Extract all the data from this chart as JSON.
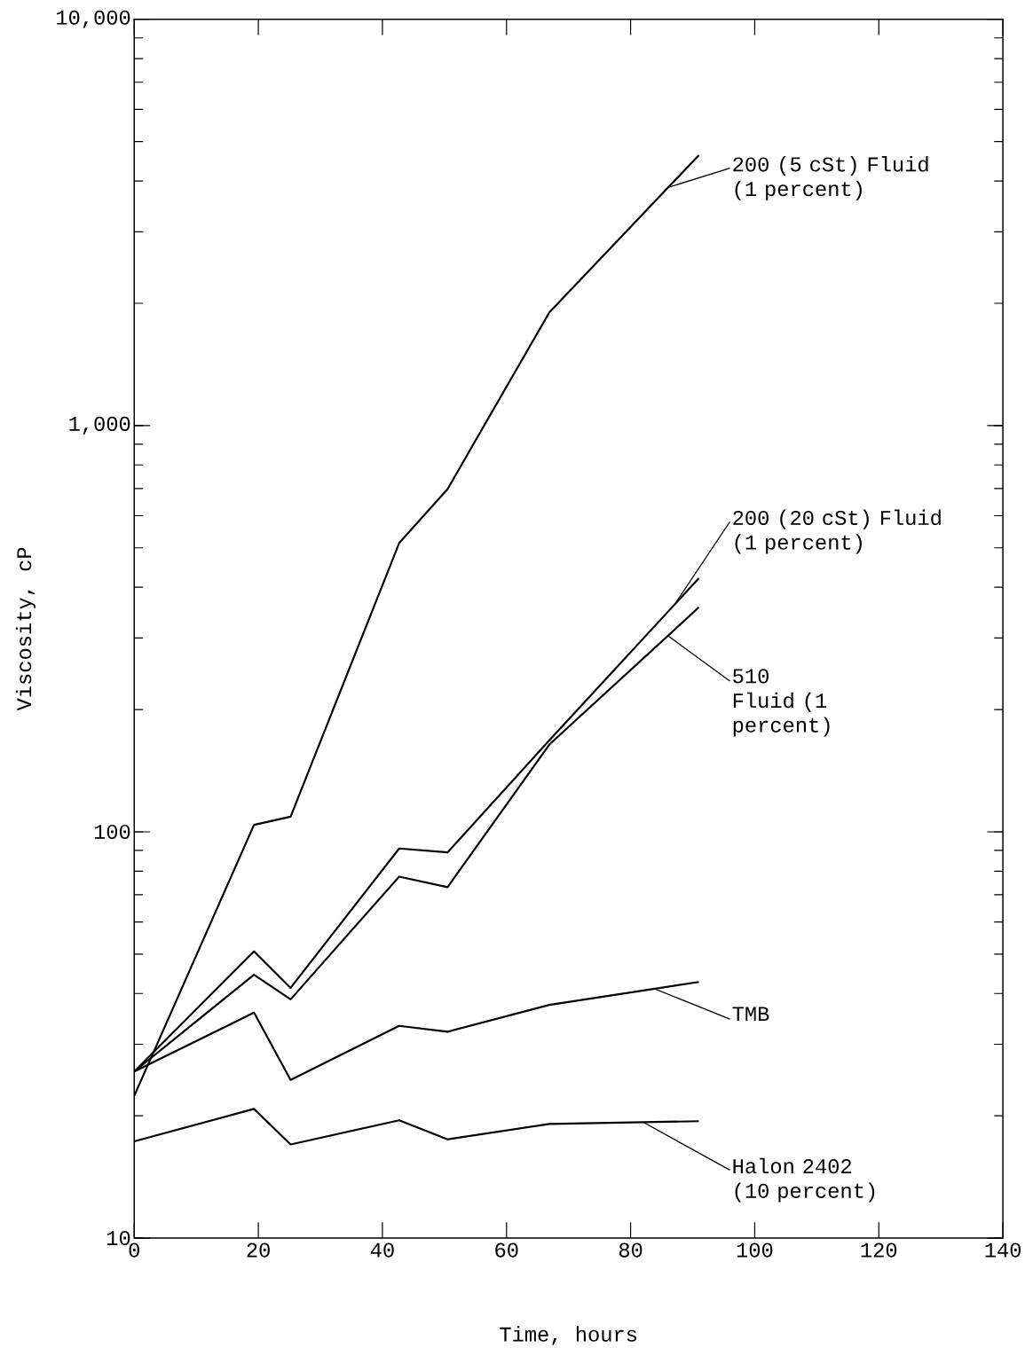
{
  "chart_data": {
    "type": "line",
    "xlabel": "Time, hours",
    "ylabel": "Viscosity, cP",
    "log": "y",
    "xlim": [
      0,
      140
    ],
    "xticks": [
      0,
      20,
      40,
      60,
      80,
      100,
      120,
      140
    ],
    "ylim": [
      10,
      10000
    ],
    "yticks": [
      10,
      100,
      {
        "value": 1000,
        "label": "1,000"
      },
      {
        "value": 10000,
        "label": "10,000"
      }
    ],
    "x": [
      0,
      19.3,
      25.2,
      42.7,
      50.5,
      66.9,
      91
    ],
    "series": [
      {
        "color": "#000000",
        "values": [
          22.4,
          104,
          109,
          514,
          698,
          1900,
          4630
        ]
      },
      {
        "color": "#000000",
        "values": [
          25.7,
          50.8,
          41.3,
          91,
          89,
          168,
          421
        ]
      },
      {
        "color": "#000000",
        "values": [
          25.7,
          44.5,
          38.7,
          77.6,
          73.1,
          164,
          357
        ]
      },
      {
        "color": "#000000",
        "values": [
          25.7,
          35.9,
          24.5,
          33.3,
          32.2,
          37.5,
          42.7
        ]
      },
      {
        "color": "#000000",
        "values": [
          17.3,
          20.8,
          17.0,
          19.5,
          17.5,
          19.1,
          19.4
        ]
      }
    ],
    "annotations": [
      {
        "text": "200 (5 cSt) Fluid (1 percent)",
        "x": 86,
        "y": 3855
      },
      {
        "text": "200 (20 cSt) Fluid (1 percent)",
        "x": 87,
        "y": 361
      },
      {
        "text": "510 Fluid (1 percent)",
        "x": 86,
        "y": 304
      },
      {
        "text": "TMB",
        "x": 84,
        "y": 41
      },
      {
        "text": "Halon 2402 (10 percent)",
        "x": 82,
        "y": 19.3
      }
    ]
  }
}
